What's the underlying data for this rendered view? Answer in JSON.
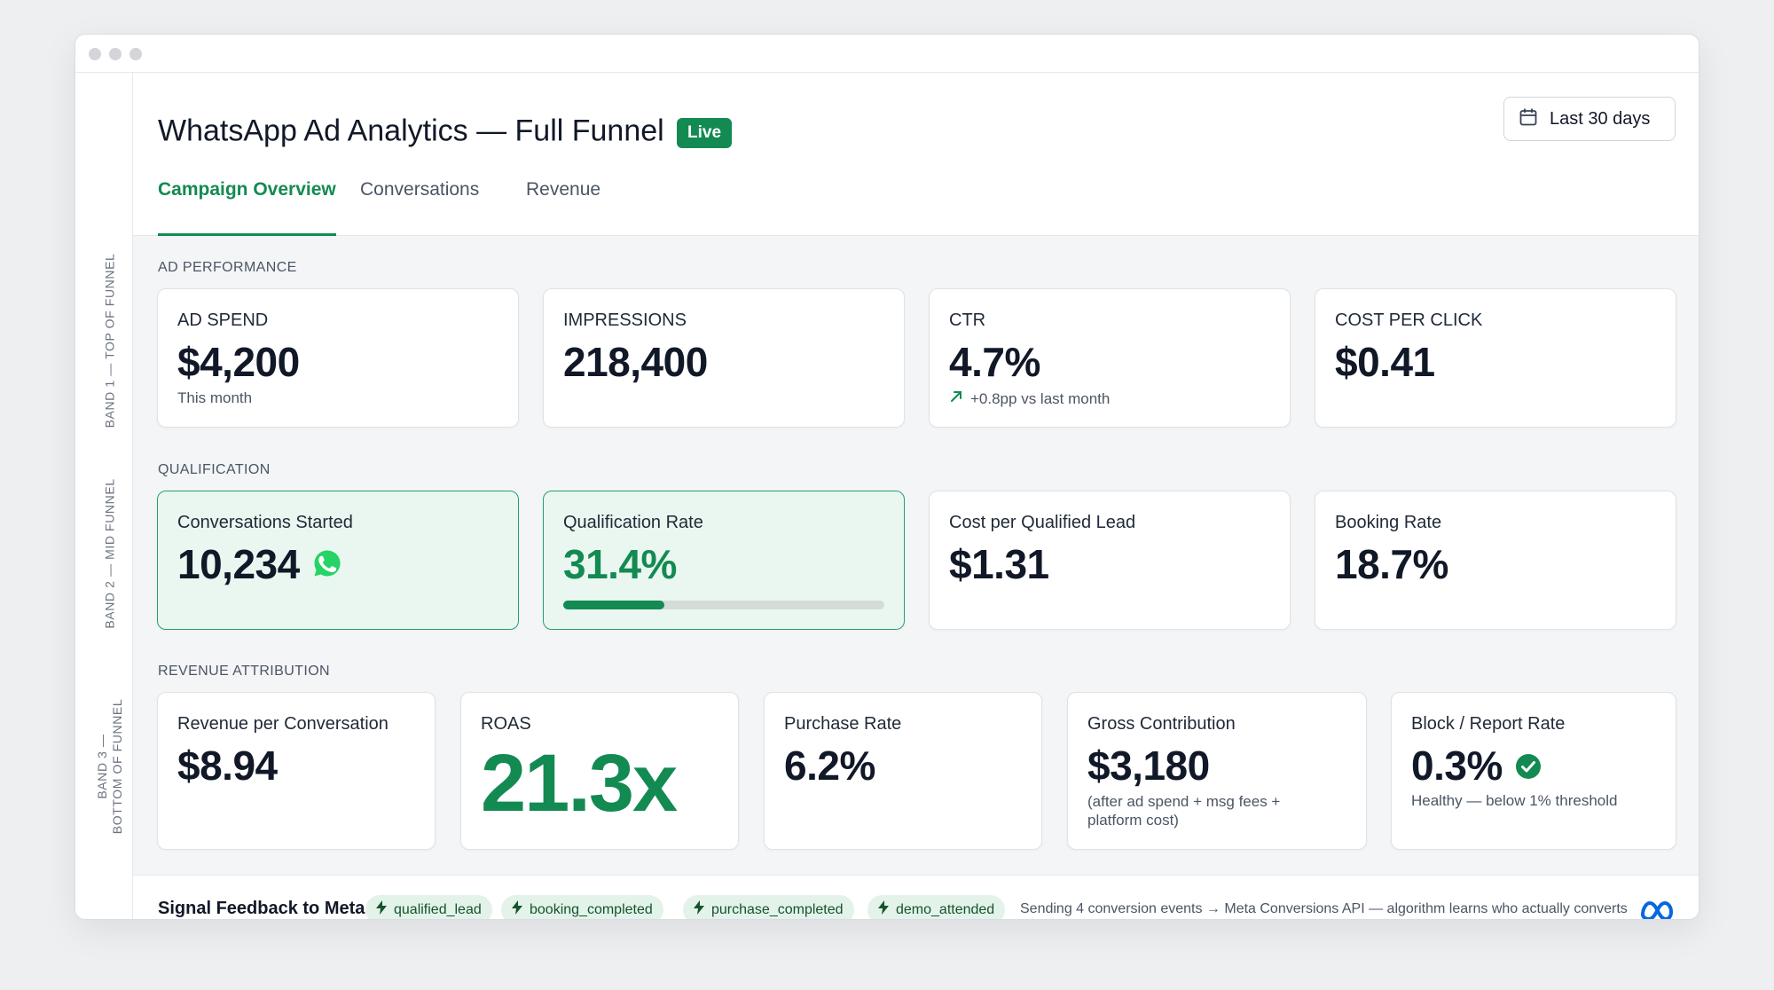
{
  "header": {
    "title": "WhatsApp Ad Analytics — Full Funnel",
    "live_badge": "Live",
    "date_range": "Last 30 days"
  },
  "tabs": [
    {
      "label": "Campaign Overview",
      "active": true
    },
    {
      "label": "Conversations",
      "active": false
    },
    {
      "label": "Revenue",
      "active": false
    }
  ],
  "rail": {
    "band1": "BAND 1 — TOP OF FUNNEL",
    "band2": "BAND 2 — MID FUNNEL",
    "band3_line1": "BAND 3 —",
    "band3_line2": "BOTTOM OF FUNNEL"
  },
  "sections": {
    "ad_performance": "AD PERFORMANCE",
    "qualification": "QUALIFICATION",
    "revenue_attribution": "REVENUE ATTRIBUTION"
  },
  "ad_performance": {
    "ad_spend": {
      "label": "AD SPEND",
      "value": "$4,200",
      "sub": "This month"
    },
    "impressions": {
      "label": "IMPRESSIONS",
      "value": "218,400"
    },
    "ctr": {
      "label": "CTR",
      "value": "4.7%",
      "trend": "+0.8pp vs last month"
    },
    "cpc": {
      "label": "COST PER CLICK",
      "value": "$0.41"
    }
  },
  "qualification": {
    "conversations": {
      "label": "Conversations Started",
      "value": "10,234"
    },
    "qual_rate": {
      "label": "Qualification Rate",
      "value": "31.4%",
      "progress": 0.314
    },
    "cpql": {
      "label": "Cost per Qualified Lead",
      "value": "$1.31"
    },
    "booking_rate": {
      "label": "Booking Rate",
      "value": "18.7%"
    }
  },
  "revenue": {
    "rev_per_conv": {
      "label": "Revenue per Conversation",
      "value": "$8.94"
    },
    "roas": {
      "label": "ROAS",
      "value": "21.3x"
    },
    "purchase_rate": {
      "label": "Purchase Rate",
      "value": "6.2%"
    },
    "gross_contribution": {
      "label": "Gross Contribution",
      "value": "$3,180",
      "sub_line1": "(after ad spend + msg fees +",
      "sub_line2": "platform cost)"
    },
    "block_rate": {
      "label": "Block / Report Rate",
      "value": "0.3%",
      "sub": "Healthy — below 1% threshold"
    }
  },
  "footer": {
    "title": "Signal Feedback to Meta",
    "events": [
      "qualified_lead",
      "booking_completed",
      "purchase_completed",
      "demo_attended"
    ],
    "note": "Sending 4 conversion events → Meta Conversions API — algorithm learns who actually converts"
  },
  "colors": {
    "accent": "#138a52",
    "highlight_bg": "#e9f7f0",
    "whatsapp": "#25d366",
    "meta": "#0668e1"
  },
  "icons": {
    "date": "calendar-icon",
    "trend": "arrow-up-right-icon",
    "conversations": "whatsapp-icon",
    "block_rate": "check-circle-icon",
    "chip": "lightning-icon",
    "footer_logo": "meta-logo-icon"
  }
}
